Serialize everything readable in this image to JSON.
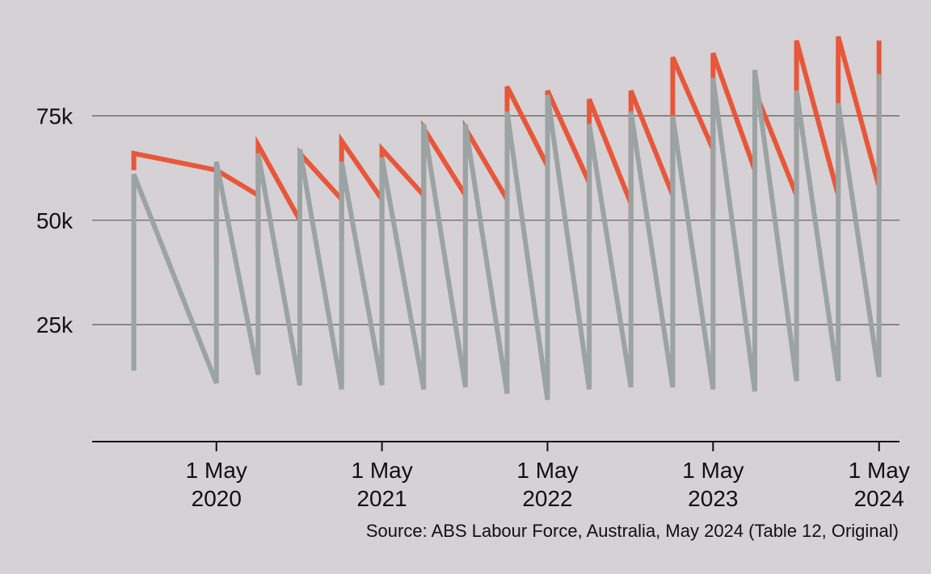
{
  "chart_data": {
    "type": "line",
    "title": "",
    "xlabel": "",
    "ylabel": "",
    "x_axis_type": "date",
    "xlim": [
      "2019-08-01",
      "2024-06-15"
    ],
    "ylim": [
      -3000,
      95000
    ],
    "grid": "horizontal",
    "legend": "none",
    "y_ticks": [
      {
        "value": 25000,
        "label": "25k"
      },
      {
        "value": 50000,
        "label": "50k"
      },
      {
        "value": 75000,
        "label": "75k"
      }
    ],
    "x_ticks": [
      {
        "date": "2020-05-01",
        "line1": "1 May",
        "line2": "2020"
      },
      {
        "date": "2021-05-01",
        "line1": "1 May",
        "line2": "2021"
      },
      {
        "date": "2022-05-01",
        "line1": "1 May",
        "line2": "2022"
      },
      {
        "date": "2023-05-01",
        "line1": "1 May",
        "line2": "2023"
      },
      {
        "date": "2024-05-01",
        "line1": "1 May",
        "line2": "2024"
      }
    ],
    "series": [
      {
        "color": "#e8573a",
        "points": [
          [
            "2019-11-01",
            62000
          ],
          [
            "2019-11-01",
            66000
          ],
          [
            "2020-05-01",
            62000
          ],
          [
            "2020-05-01",
            40000
          ],
          [
            "2020-05-01",
            62000
          ],
          [
            "2020-08-01",
            56000
          ],
          [
            "2020-08-01",
            44000
          ],
          [
            "2020-08-01",
            68000
          ],
          [
            "2020-11-01",
            50000
          ],
          [
            "2020-11-01",
            40000
          ],
          [
            "2020-11-01",
            66000
          ],
          [
            "2021-02-01",
            55000
          ],
          [
            "2021-02-01",
            45000
          ],
          [
            "2021-02-01",
            69000
          ],
          [
            "2021-05-01",
            55000
          ],
          [
            "2021-05-01",
            45000
          ],
          [
            "2021-05-01",
            67000
          ],
          [
            "2021-08-01",
            56000
          ],
          [
            "2021-08-01",
            46000
          ],
          [
            "2021-08-01",
            72000
          ],
          [
            "2021-11-01",
            56000
          ],
          [
            "2021-11-01",
            46000
          ],
          [
            "2021-11-01",
            72000
          ],
          [
            "2022-02-01",
            55000
          ],
          [
            "2022-02-01",
            45000
          ],
          [
            "2022-02-01",
            82000
          ],
          [
            "2022-05-01",
            63000
          ],
          [
            "2022-05-01",
            48000
          ],
          [
            "2022-05-01",
            81000
          ],
          [
            "2022-08-01",
            59000
          ],
          [
            "2022-08-01",
            47000
          ],
          [
            "2022-08-01",
            79000
          ],
          [
            "2022-11-01",
            54000
          ],
          [
            "2022-11-01",
            47000
          ],
          [
            "2022-11-01",
            81000
          ],
          [
            "2023-02-01",
            56000
          ],
          [
            "2023-02-01",
            75000
          ],
          [
            "2023-02-01",
            89000
          ],
          [
            "2023-05-01",
            67000
          ],
          [
            "2023-05-01",
            52000
          ],
          [
            "2023-05-01",
            90000
          ],
          [
            "2023-08-01",
            62000
          ],
          [
            "2023-08-01",
            47000
          ],
          [
            "2023-08-01",
            81000
          ],
          [
            "2023-11-01",
            56000
          ],
          [
            "2023-11-01",
            81000
          ],
          [
            "2023-11-01",
            93000
          ],
          [
            "2024-02-01",
            56000
          ],
          [
            "2024-02-01",
            79000
          ],
          [
            "2024-02-01",
            94000
          ],
          [
            "2024-05-01",
            58000
          ],
          [
            "2024-05-01",
            93000
          ]
        ]
      },
      {
        "color": "#9ba3a3",
        "points": [
          [
            "2019-11-01",
            14000
          ],
          [
            "2019-11-01",
            61000
          ],
          [
            "2020-05-01",
            11000
          ],
          [
            "2020-05-01",
            64000
          ],
          [
            "2020-08-01",
            13000
          ],
          [
            "2020-08-01",
            66000
          ],
          [
            "2020-11-01",
            10500
          ],
          [
            "2020-11-01",
            67000
          ],
          [
            "2021-02-01",
            9500
          ],
          [
            "2021-02-01",
            64000
          ],
          [
            "2021-05-01",
            10500
          ],
          [
            "2021-05-01",
            65000
          ],
          [
            "2021-08-01",
            9500
          ],
          [
            "2021-08-01",
            73000
          ],
          [
            "2021-11-01",
            10000
          ],
          [
            "2021-11-01",
            73000
          ],
          [
            "2022-02-01",
            8500
          ],
          [
            "2022-02-01",
            76000
          ],
          [
            "2022-05-01",
            7000
          ],
          [
            "2022-05-01",
            80000
          ],
          [
            "2022-08-01",
            9500
          ],
          [
            "2022-08-01",
            73000
          ],
          [
            "2022-11-01",
            10000
          ],
          [
            "2022-11-01",
            76000
          ],
          [
            "2023-02-01",
            10000
          ],
          [
            "2023-02-01",
            75000
          ],
          [
            "2023-05-01",
            9500
          ],
          [
            "2023-05-01",
            84000
          ],
          [
            "2023-08-01",
            9000
          ],
          [
            "2023-08-01",
            86000
          ],
          [
            "2023-11-01",
            11500
          ],
          [
            "2023-11-01",
            81000
          ],
          [
            "2024-02-01",
            11500
          ],
          [
            "2024-02-01",
            78000
          ],
          [
            "2024-05-01",
            12500
          ],
          [
            "2024-05-01",
            85000
          ]
        ]
      }
    ]
  },
  "source": "Source: ABS Labour Force, Australia, May 2024 (Table 12, Original)"
}
